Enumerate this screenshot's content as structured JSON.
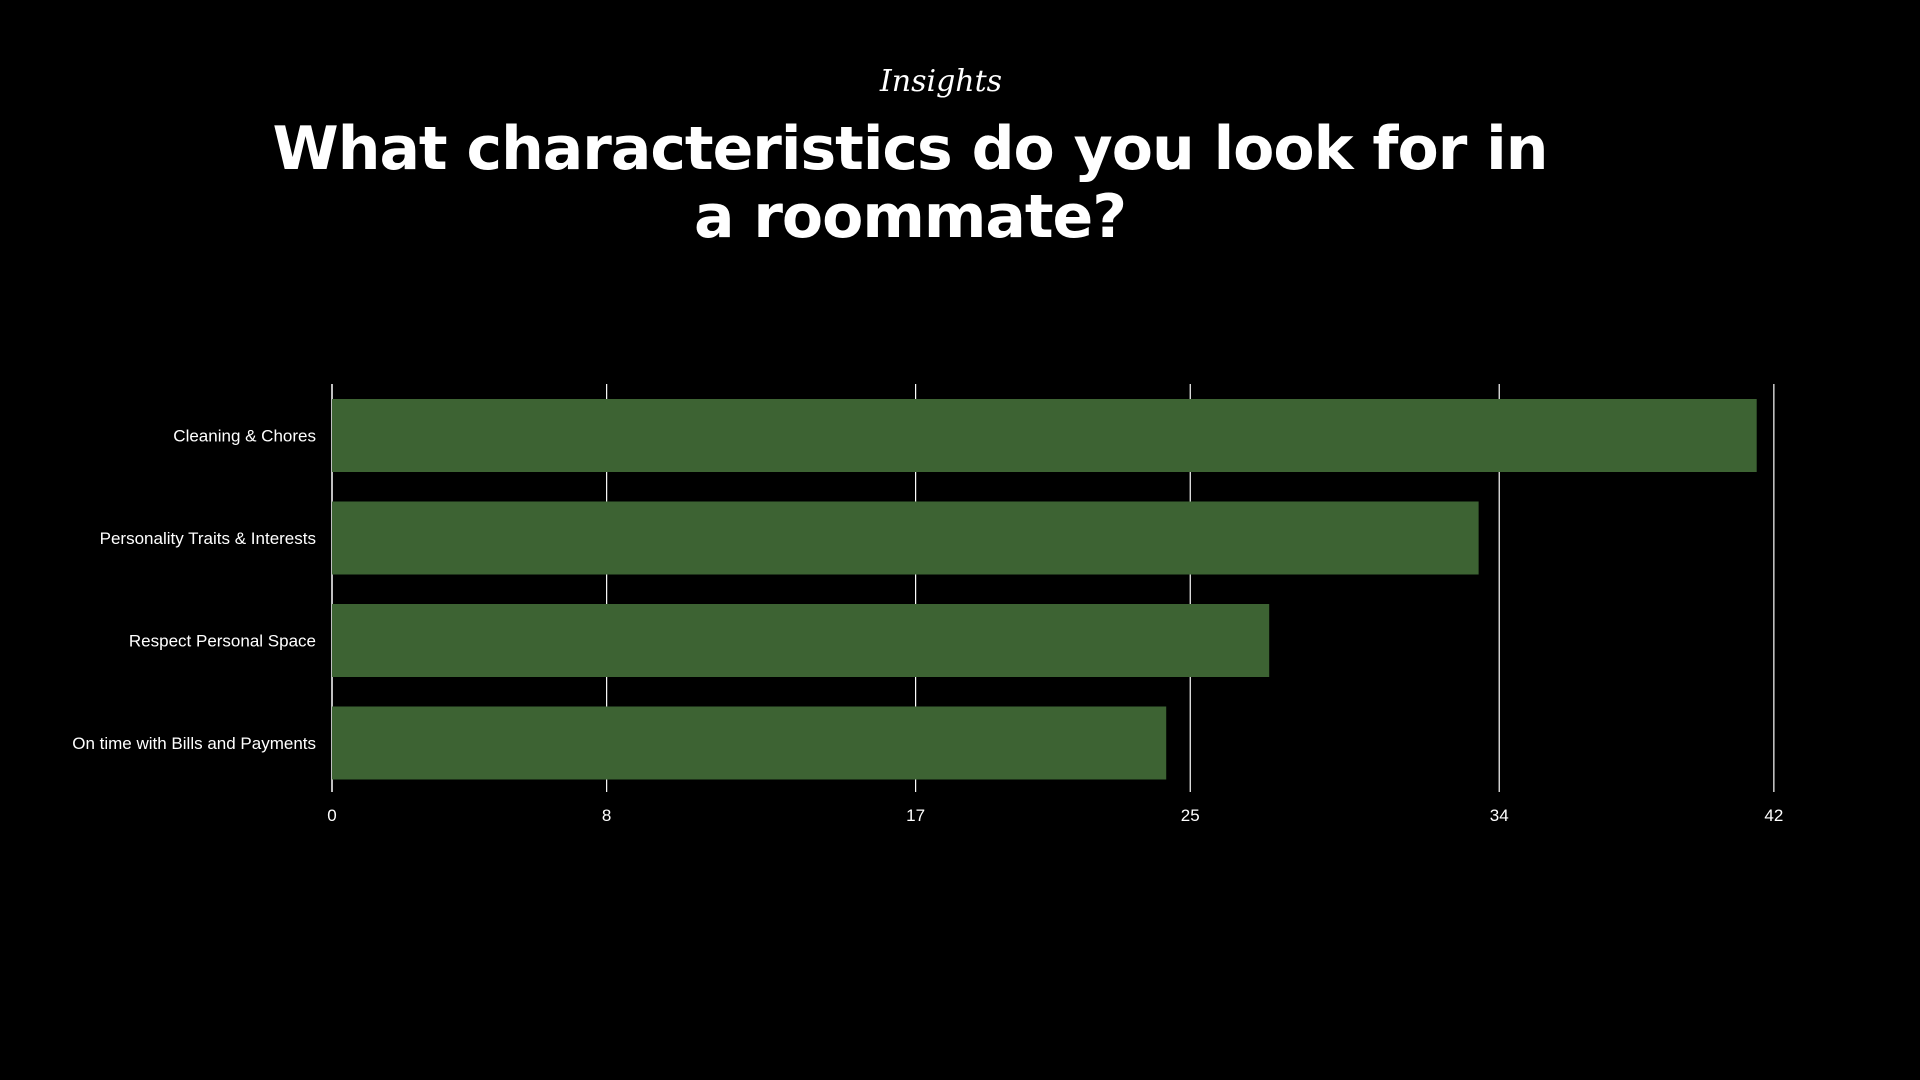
{
  "header": {
    "eyebrow": "Insights",
    "title": "What characteristics do you look for in a roommate?"
  },
  "colors": {
    "background": "#000000",
    "bar": "#3d6333",
    "gridline": "#ffffff",
    "text": "#ffffff"
  },
  "chart_data": {
    "type": "bar",
    "orientation": "horizontal",
    "categories": [
      "Cleaning & Chores",
      "Personality Traits & Interests",
      "Respect Personal Space",
      "On time with Bills and Payments"
    ],
    "values": [
      41.5,
      33.4,
      27.3,
      24.3
    ],
    "xticks": [
      "0",
      "8",
      "17",
      "25",
      "34",
      "42"
    ],
    "xlim": [
      0,
      42.5
    ],
    "grid": true,
    "legend": "none"
  }
}
